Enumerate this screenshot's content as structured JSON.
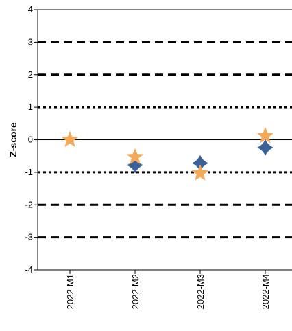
{
  "chart_data": {
    "type": "scatter",
    "title": "",
    "xlabel": "",
    "ylabel": "Z-score",
    "ylim": [
      -4,
      4
    ],
    "yticks": [
      -4,
      -3,
      -2,
      -1,
      0,
      1,
      2,
      3,
      4
    ],
    "categories": [
      "2022-M1",
      "2022-M2",
      "2022-M3",
      "2022-M4"
    ],
    "reference_lines": [
      {
        "y": 3,
        "style": "dashed"
      },
      {
        "y": 2,
        "style": "dashed"
      },
      {
        "y": 1,
        "style": "dotted"
      },
      {
        "y": 0,
        "style": "solid"
      },
      {
        "y": -1,
        "style": "dotted"
      },
      {
        "y": -2,
        "style": "dashed"
      },
      {
        "y": -3,
        "style": "dashed"
      }
    ],
    "series": [
      {
        "marker": "diamond-star",
        "color": "#3B6298",
        "values": [
          null,
          -0.78,
          -0.72,
          -0.24
        ]
      },
      {
        "marker": "star",
        "color": "#F4A95B",
        "values": [
          0.0,
          -0.53,
          -1.03,
          0.12
        ]
      }
    ]
  }
}
